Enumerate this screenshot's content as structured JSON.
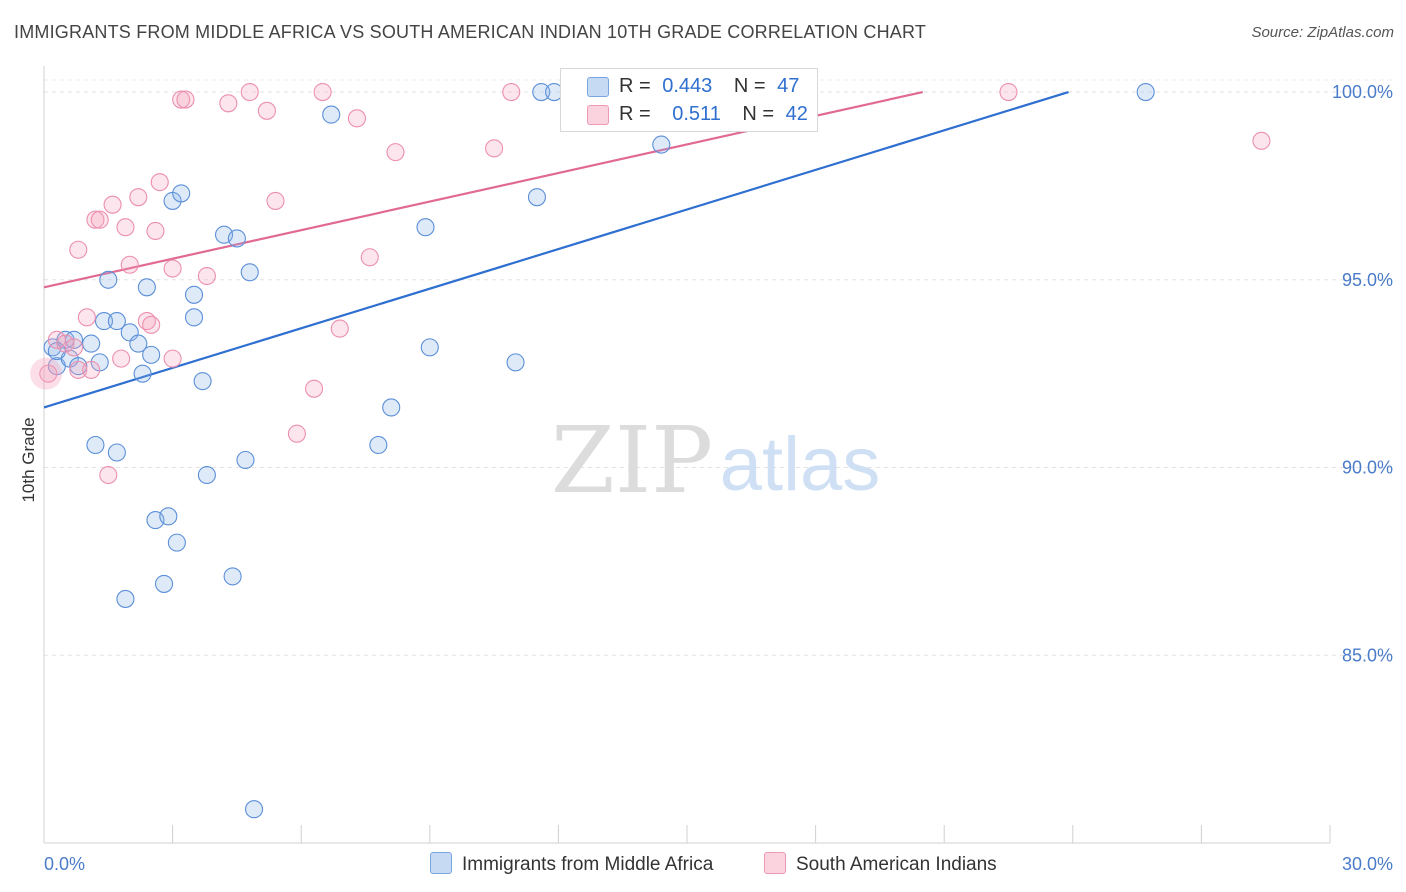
{
  "header": {
    "title": "IMMIGRANTS FROM MIDDLE AFRICA VS SOUTH AMERICAN INDIAN 10TH GRADE CORRELATION CHART",
    "source": "Source: ZipAtlas.com"
  },
  "watermark": {
    "zip": "ZIP",
    "atlas": "atlas"
  },
  "legend": {
    "rows": [
      {
        "r_label": "R =",
        "r_value": "0.443",
        "n_label": "N =",
        "n_value": "47",
        "color": "#a9c6ee"
      },
      {
        "r_label": "R =",
        "r_value": "0.511",
        "n_label": "N =",
        "n_value": "42",
        "color": "#f6b9cc"
      }
    ]
  },
  "bottom_legend": {
    "items": [
      {
        "label": "Immigrants from Middle Africa",
        "color": "#a9c6ee"
      },
      {
        "label": "South American Indians",
        "color": "#f6b9cc"
      }
    ]
  },
  "chart_data": {
    "type": "scatter",
    "title": "IMMIGRANTS FROM MIDDLE AFRICA VS SOUTH AMERICAN INDIAN 10TH GRADE CORRELATION CHART",
    "xlabel": "",
    "ylabel": "10th Grade",
    "xlim": [
      0,
      30
    ],
    "ylim": [
      80.0,
      100.8
    ],
    "x_tick_labels": [
      "0.0%",
      "30.0%"
    ],
    "y_ticks": [
      85,
      90,
      95,
      100
    ],
    "y_tick_labels": [
      "85.0%",
      "90.0%",
      "95.0%",
      "100.0%"
    ],
    "grid": "horizontal dashed",
    "legend_position": "top-center",
    "colors": {
      "blue": "#4a86d8",
      "pink": "#e8729a",
      "blue_line": "#2f6fd0",
      "pink_line": "#e06a94"
    },
    "series": [
      {
        "name": "Immigrants from Middle Africa",
        "color": "#4a86d8",
        "trend": {
          "x": [
            0,
            23.9
          ],
          "y": [
            91.6,
            100.0
          ]
        },
        "points": [
          [
            0.2,
            93.2
          ],
          [
            0.3,
            92.7
          ],
          [
            0.5,
            93.4
          ],
          [
            0.6,
            92.9
          ],
          [
            0.8,
            92.7
          ],
          [
            1.1,
            93.3
          ],
          [
            1.2,
            90.6
          ],
          [
            1.4,
            93.9
          ],
          [
            1.5,
            95.0
          ],
          [
            1.7,
            93.9
          ],
          [
            1.7,
            90.4
          ],
          [
            1.9,
            86.5
          ],
          [
            2.0,
            93.6
          ],
          [
            2.2,
            93.3
          ],
          [
            2.3,
            92.5
          ],
          [
            2.4,
            94.8
          ],
          [
            2.5,
            93.0
          ],
          [
            2.6,
            88.6
          ],
          [
            2.8,
            86.9
          ],
          [
            2.9,
            88.7
          ],
          [
            3.0,
            97.1
          ],
          [
            3.1,
            88.0
          ],
          [
            3.2,
            97.3
          ],
          [
            3.5,
            94.6
          ],
          [
            3.5,
            94.0
          ],
          [
            3.7,
            92.3
          ],
          [
            3.8,
            89.8
          ],
          [
            4.2,
            96.2
          ],
          [
            4.4,
            87.1
          ],
          [
            4.5,
            96.1
          ],
          [
            4.7,
            90.2
          ],
          [
            4.8,
            95.2
          ],
          [
            4.9,
            80.9
          ],
          [
            6.7,
            99.4
          ],
          [
            7.8,
            90.6
          ],
          [
            8.1,
            91.6
          ],
          [
            8.9,
            96.4
          ],
          [
            9.0,
            93.2
          ],
          [
            11.0,
            92.8
          ],
          [
            11.5,
            97.2
          ],
          [
            11.6,
            100.0
          ],
          [
            11.9,
            100.0
          ],
          [
            14.4,
            98.6
          ],
          [
            25.7,
            100.0
          ],
          [
            0.3,
            93.1
          ],
          [
            0.7,
            93.4
          ],
          [
            1.3,
            92.8
          ]
        ]
      },
      {
        "name": "South American Indians",
        "color": "#e8729a",
        "trend": {
          "x": [
            0,
            20.5
          ],
          "y": [
            94.8,
            100.0
          ]
        },
        "points": [
          [
            0.1,
            92.5
          ],
          [
            0.3,
            93.4
          ],
          [
            0.5,
            93.3
          ],
          [
            0.7,
            93.2
          ],
          [
            0.8,
            92.6
          ],
          [
            0.8,
            95.8
          ],
          [
            1.0,
            94.0
          ],
          [
            1.1,
            92.6
          ],
          [
            1.2,
            96.6
          ],
          [
            1.3,
            96.6
          ],
          [
            1.5,
            89.8
          ],
          [
            1.6,
            97.0
          ],
          [
            1.8,
            92.9
          ],
          [
            1.9,
            96.4
          ],
          [
            2.0,
            95.4
          ],
          [
            2.2,
            97.2
          ],
          [
            2.4,
            93.9
          ],
          [
            2.5,
            93.8
          ],
          [
            2.6,
            96.3
          ],
          [
            2.7,
            97.6
          ],
          [
            3.0,
            95.3
          ],
          [
            3.0,
            92.9
          ],
          [
            3.2,
            99.8
          ],
          [
            3.3,
            99.8
          ],
          [
            3.8,
            95.1
          ],
          [
            4.3,
            99.7
          ],
          [
            4.8,
            100.0
          ],
          [
            5.2,
            99.5
          ],
          [
            5.4,
            97.1
          ],
          [
            5.9,
            90.9
          ],
          [
            6.3,
            92.1
          ],
          [
            6.5,
            100.0
          ],
          [
            6.9,
            93.7
          ],
          [
            7.3,
            99.3
          ],
          [
            7.6,
            95.6
          ],
          [
            8.2,
            98.4
          ],
          [
            10.5,
            98.5
          ],
          [
            10.9,
            100.0
          ],
          [
            13.8,
            100.0
          ],
          [
            14.4,
            100.0
          ],
          [
            22.5,
            100.0
          ],
          [
            28.4,
            98.7
          ]
        ]
      }
    ]
  }
}
